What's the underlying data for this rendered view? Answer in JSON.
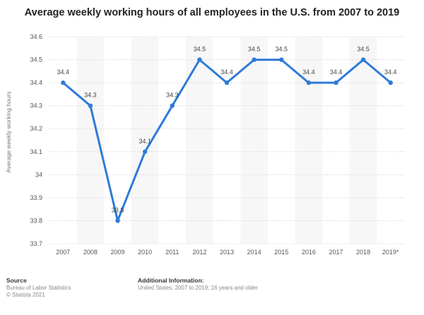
{
  "chart_data": {
    "type": "line",
    "title": "Average weekly working hours of all employees in the U.S. from 2007 to 2019",
    "ylabel": "Average weekly working hours",
    "xlabel": "",
    "categories": [
      "2007",
      "2008",
      "2009",
      "2010",
      "2011",
      "2012",
      "2013",
      "2014",
      "2015",
      "2016",
      "2017",
      "2018",
      "2019*"
    ],
    "series": [
      {
        "values": [
          34.4,
          34.3,
          33.8,
          34.1,
          34.3,
          34.5,
          34.4,
          34.5,
          34.5,
          34.4,
          34.4,
          34.5,
          34.4
        ]
      }
    ],
    "data_labels": [
      "34.4",
      "34.3",
      "33.8",
      "34.1",
      "34.3",
      "34.5",
      "34.4",
      "34.5",
      "34.5",
      "34.4",
      "34.4",
      "34.5",
      "34.4"
    ],
    "ylim": [
      33.7,
      34.6
    ],
    "yticks": [
      "33.7",
      "33.8",
      "33.9",
      "34",
      "34.1",
      "34.2",
      "34.3",
      "34.4",
      "34.5",
      "34.6"
    ],
    "grid": true,
    "line_color": "#2f7ad8"
  },
  "footer": {
    "source_heading": "Source",
    "source_line1": "Bureau of Labor Statistics",
    "source_line2": "© Statista 2021",
    "info_heading": "Additional Information:",
    "info_line1": "United States; 2007 to 2019; 16 years and older"
  }
}
